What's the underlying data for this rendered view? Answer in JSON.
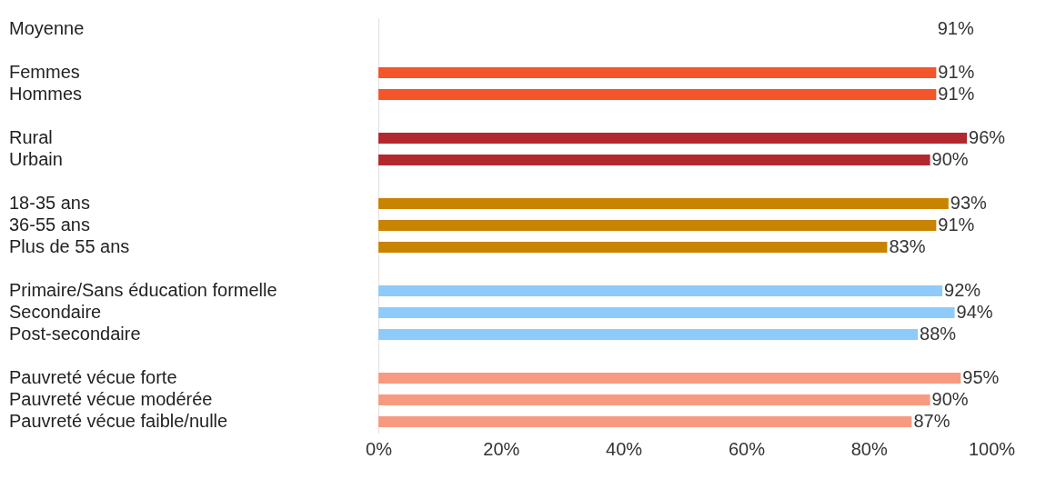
{
  "chart_data": {
    "type": "bar",
    "orientation": "horizontal",
    "categories": [
      "Moyenne",
      null,
      "Femmes",
      "Hommes",
      null,
      "Rural",
      "Urbain",
      null,
      "18-35 ans",
      "36-55 ans",
      "Plus de 55 ans",
      null,
      "Primaire/Sans éducation formelle",
      "Secondaire",
      "Post-secondaire",
      null,
      "Pauvreté vécue forte",
      "Pauvreté vécue modérée",
      "Pauvreté vécue faible/nulle"
    ],
    "values": [
      null,
      null,
      91,
      91,
      null,
      96,
      90,
      null,
      93,
      91,
      83,
      null,
      92,
      94,
      88,
      null,
      95,
      90,
      87
    ],
    "colors": [
      null,
      null,
      "#f4562a",
      "#f4562a",
      null,
      "#b3282f",
      "#b3282f",
      null,
      "#c88400",
      "#c88400",
      "#c88400",
      null,
      "#8ecbfb",
      "#8ecbfb",
      "#8ecbfb",
      null,
      "#f79a80",
      "#f79a80",
      "#f79a80"
    ],
    "value_labels": [
      null,
      null,
      "91%",
      "91%",
      null,
      "96%",
      "90%",
      null,
      "93%",
      "91%",
      "83%",
      null,
      "92%",
      "94%",
      "88%",
      null,
      "95%",
      "90%",
      "87%"
    ],
    "xlim": [
      0,
      100
    ],
    "xticks": [
      {
        "value": 0,
        "label": "0%"
      },
      {
        "value": 20,
        "label": "20%"
      },
      {
        "value": 40,
        "label": "40%"
      },
      {
        "value": 60,
        "label": "60%"
      },
      {
        "value": 80,
        "label": "80%"
      },
      {
        "value": 100,
        "label": "100%"
      }
    ],
    "annotations": [
      "91%"
    ],
    "grid": false
  }
}
